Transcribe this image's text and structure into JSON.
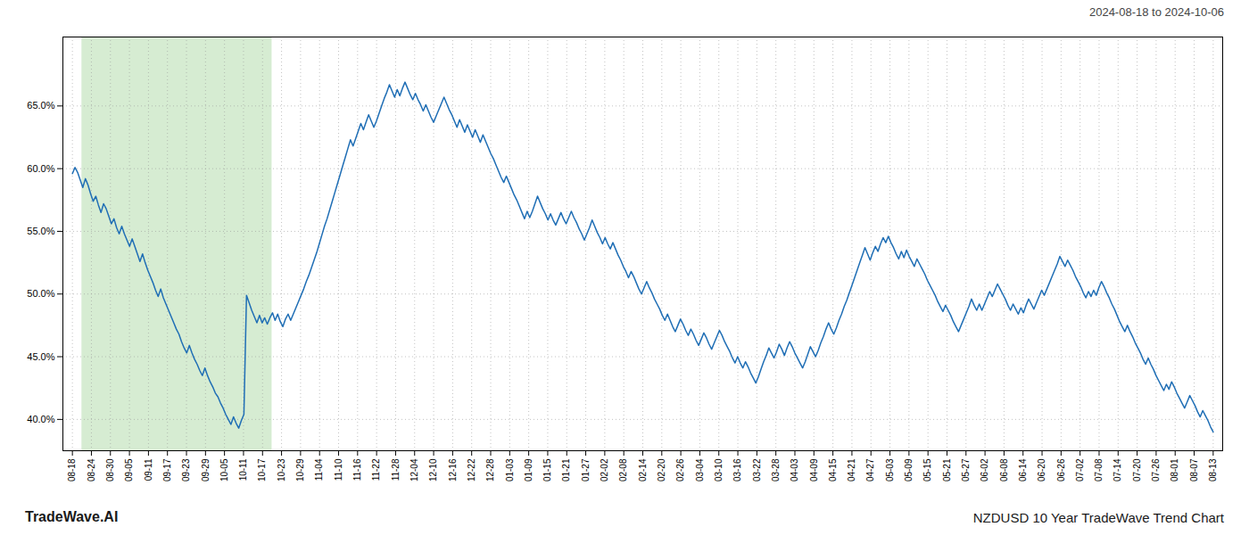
{
  "chart_data": {
    "type": "line",
    "title": "NZDUSD 10 Year TradeWave Trend Chart",
    "subtitle": "2024-08-18 to 2024-10-06",
    "annotations": [
      "TradeWave.AI"
    ],
    "color": "#1f6eb5",
    "grid": true,
    "ylim": [
      0.375,
      0.705
    ],
    "yticks": [
      {
        "value": 0.4,
        "label": "40.0%"
      },
      {
        "value": 0.45,
        "label": "45.0%"
      },
      {
        "value": 0.5,
        "label": "50.0%"
      },
      {
        "value": 0.55,
        "label": "55.0%"
      },
      {
        "value": 0.6,
        "label": "60.0%"
      },
      {
        "value": 0.65,
        "label": "65.0%"
      }
    ],
    "xlim": [
      -0.5,
      60.5
    ],
    "xticks": [
      {
        "value": 0,
        "label": "08-18"
      },
      {
        "value": 1,
        "label": "08-24"
      },
      {
        "value": 2,
        "label": "08-30"
      },
      {
        "value": 3,
        "label": "09-05"
      },
      {
        "value": 4,
        "label": "09-11"
      },
      {
        "value": 5,
        "label": "09-17"
      },
      {
        "value": 6,
        "label": "09-23"
      },
      {
        "value": 7,
        "label": "09-29"
      },
      {
        "value": 8,
        "label": "10-05"
      },
      {
        "value": 9,
        "label": "10-11"
      },
      {
        "value": 10,
        "label": "10-17"
      },
      {
        "value": 11,
        "label": "10-23"
      },
      {
        "value": 12,
        "label": "10-29"
      },
      {
        "value": 13,
        "label": "11-04"
      },
      {
        "value": 14,
        "label": "11-10"
      },
      {
        "value": 15,
        "label": "11-16"
      },
      {
        "value": 16,
        "label": "11-22"
      },
      {
        "value": 17,
        "label": "11-28"
      },
      {
        "value": 18,
        "label": "12-04"
      },
      {
        "value": 19,
        "label": "12-10"
      },
      {
        "value": 20,
        "label": "12-16"
      },
      {
        "value": 21,
        "label": "12-22"
      },
      {
        "value": 22,
        "label": "12-28"
      },
      {
        "value": 23,
        "label": "01-03"
      },
      {
        "value": 24,
        "label": "01-09"
      },
      {
        "value": 25,
        "label": "01-15"
      },
      {
        "value": 26,
        "label": "01-21"
      },
      {
        "value": 27,
        "label": "01-27"
      },
      {
        "value": 28,
        "label": "02-02"
      },
      {
        "value": 29,
        "label": "02-08"
      },
      {
        "value": 30,
        "label": "02-14"
      },
      {
        "value": 31,
        "label": "02-20"
      },
      {
        "value": 32,
        "label": "02-26"
      },
      {
        "value": 33,
        "label": "03-04"
      },
      {
        "value": 34,
        "label": "03-10"
      },
      {
        "value": 35,
        "label": "03-16"
      },
      {
        "value": 36,
        "label": "03-22"
      },
      {
        "value": 37,
        "label": "03-28"
      },
      {
        "value": 38,
        "label": "04-03"
      },
      {
        "value": 39,
        "label": "04-09"
      },
      {
        "value": 40,
        "label": "04-15"
      },
      {
        "value": 41,
        "label": "04-21"
      },
      {
        "value": 42,
        "label": "04-27"
      },
      {
        "value": 43,
        "label": "05-03"
      },
      {
        "value": 44,
        "label": "05-09"
      },
      {
        "value": 45,
        "label": "05-15"
      },
      {
        "value": 46,
        "label": "05-21"
      },
      {
        "value": 47,
        "label": "05-27"
      },
      {
        "value": 48,
        "label": "06-02"
      },
      {
        "value": 49,
        "label": "06-08"
      },
      {
        "value": 50,
        "label": "06-14"
      },
      {
        "value": 51,
        "label": "06-20"
      },
      {
        "value": 52,
        "label": "06-26"
      },
      {
        "value": 53,
        "label": "07-02"
      },
      {
        "value": 54,
        "label": "07-08"
      },
      {
        "value": 55,
        "label": "07-14"
      },
      {
        "value": 56,
        "label": "07-20"
      },
      {
        "value": 57,
        "label": "07-26"
      },
      {
        "value": 58,
        "label": "08-01"
      },
      {
        "value": 59,
        "label": "08-07"
      },
      {
        "value": 60,
        "label": "08-13"
      }
    ],
    "highlight": {
      "from": "08-24",
      "to": "10-17",
      "color": "#d6ecd2"
    },
    "values": [
      0.596,
      0.601,
      0.597,
      0.591,
      0.585,
      0.592,
      0.587,
      0.58,
      0.574,
      0.578,
      0.571,
      0.565,
      0.572,
      0.568,
      0.562,
      0.556,
      0.56,
      0.553,
      0.548,
      0.554,
      0.548,
      0.543,
      0.538,
      0.544,
      0.538,
      0.532,
      0.526,
      0.532,
      0.525,
      0.519,
      0.514,
      0.509,
      0.503,
      0.498,
      0.504,
      0.497,
      0.492,
      0.487,
      0.482,
      0.477,
      0.472,
      0.468,
      0.462,
      0.457,
      0.453,
      0.459,
      0.453,
      0.448,
      0.444,
      0.439,
      0.435,
      0.441,
      0.435,
      0.43,
      0.426,
      0.421,
      0.418,
      0.413,
      0.409,
      0.404,
      0.4,
      0.396,
      0.402,
      0.397,
      0.393,
      0.399,
      0.404,
      0.499,
      0.493,
      0.487,
      0.482,
      0.477,
      0.483,
      0.477,
      0.481,
      0.476,
      0.481,
      0.485,
      0.479,
      0.484,
      0.478,
      0.474,
      0.48,
      0.484,
      0.479,
      0.484,
      0.489,
      0.494,
      0.499,
      0.504,
      0.51,
      0.515,
      0.521,
      0.527,
      0.533,
      0.54,
      0.547,
      0.554,
      0.56,
      0.567,
      0.574,
      0.581,
      0.588,
      0.595,
      0.602,
      0.609,
      0.616,
      0.623,
      0.618,
      0.624,
      0.63,
      0.636,
      0.631,
      0.637,
      0.643,
      0.638,
      0.633,
      0.638,
      0.644,
      0.65,
      0.656,
      0.661,
      0.667,
      0.662,
      0.657,
      0.663,
      0.658,
      0.664,
      0.669,
      0.664,
      0.659,
      0.655,
      0.66,
      0.655,
      0.651,
      0.646,
      0.651,
      0.646,
      0.641,
      0.637,
      0.642,
      0.647,
      0.652,
      0.657,
      0.652,
      0.647,
      0.643,
      0.638,
      0.633,
      0.639,
      0.634,
      0.629,
      0.635,
      0.63,
      0.625,
      0.631,
      0.626,
      0.621,
      0.627,
      0.622,
      0.617,
      0.612,
      0.608,
      0.603,
      0.598,
      0.593,
      0.589,
      0.594,
      0.589,
      0.584,
      0.579,
      0.575,
      0.57,
      0.565,
      0.56,
      0.566,
      0.561,
      0.566,
      0.572,
      0.578,
      0.573,
      0.568,
      0.564,
      0.559,
      0.564,
      0.559,
      0.555,
      0.56,
      0.565,
      0.56,
      0.556,
      0.561,
      0.566,
      0.561,
      0.557,
      0.552,
      0.548,
      0.543,
      0.548,
      0.553,
      0.559,
      0.554,
      0.549,
      0.545,
      0.54,
      0.545,
      0.54,
      0.536,
      0.541,
      0.536,
      0.531,
      0.527,
      0.522,
      0.518,
      0.513,
      0.518,
      0.514,
      0.509,
      0.504,
      0.5,
      0.505,
      0.51,
      0.505,
      0.501,
      0.496,
      0.492,
      0.488,
      0.483,
      0.479,
      0.484,
      0.479,
      0.474,
      0.47,
      0.475,
      0.48,
      0.476,
      0.471,
      0.467,
      0.472,
      0.468,
      0.463,
      0.459,
      0.464,
      0.469,
      0.465,
      0.46,
      0.456,
      0.461,
      0.466,
      0.471,
      0.467,
      0.462,
      0.458,
      0.454,
      0.449,
      0.445,
      0.45,
      0.445,
      0.441,
      0.446,
      0.442,
      0.437,
      0.433,
      0.429,
      0.434,
      0.44,
      0.446,
      0.451,
      0.457,
      0.453,
      0.449,
      0.454,
      0.46,
      0.456,
      0.451,
      0.457,
      0.462,
      0.458,
      0.453,
      0.449,
      0.445,
      0.441,
      0.446,
      0.452,
      0.458,
      0.454,
      0.45,
      0.455,
      0.461,
      0.466,
      0.472,
      0.477,
      0.472,
      0.468,
      0.473,
      0.479,
      0.484,
      0.49,
      0.495,
      0.501,
      0.507,
      0.513,
      0.519,
      0.525,
      0.531,
      0.537,
      0.532,
      0.527,
      0.533,
      0.538,
      0.534,
      0.54,
      0.545,
      0.541,
      0.546,
      0.541,
      0.537,
      0.532,
      0.528,
      0.534,
      0.529,
      0.535,
      0.53,
      0.526,
      0.522,
      0.528,
      0.524,
      0.52,
      0.516,
      0.511,
      0.507,
      0.503,
      0.499,
      0.494,
      0.49,
      0.486,
      0.491,
      0.487,
      0.483,
      0.478,
      0.474,
      0.47,
      0.475,
      0.48,
      0.485,
      0.49,
      0.496,
      0.491,
      0.487,
      0.492,
      0.487,
      0.492,
      0.497,
      0.502,
      0.498,
      0.503,
      0.508,
      0.504,
      0.5,
      0.496,
      0.491,
      0.487,
      0.492,
      0.488,
      0.484,
      0.489,
      0.485,
      0.491,
      0.496,
      0.492,
      0.488,
      0.493,
      0.498,
      0.503,
      0.499,
      0.504,
      0.509,
      0.514,
      0.519,
      0.524,
      0.53,
      0.526,
      0.522,
      0.527,
      0.523,
      0.519,
      0.514,
      0.51,
      0.506,
      0.501,
      0.497,
      0.502,
      0.498,
      0.503,
      0.499,
      0.505,
      0.51,
      0.506,
      0.501,
      0.497,
      0.492,
      0.488,
      0.483,
      0.478,
      0.474,
      0.47,
      0.475,
      0.47,
      0.466,
      0.461,
      0.457,
      0.453,
      0.448,
      0.444,
      0.449,
      0.444,
      0.44,
      0.435,
      0.431,
      0.427,
      0.423,
      0.428,
      0.424,
      0.43,
      0.426,
      0.421,
      0.417,
      0.413,
      0.409,
      0.414,
      0.419,
      0.415,
      0.411,
      0.406,
      0.402,
      0.407,
      0.403,
      0.399,
      0.394,
      0.39
    ]
  }
}
